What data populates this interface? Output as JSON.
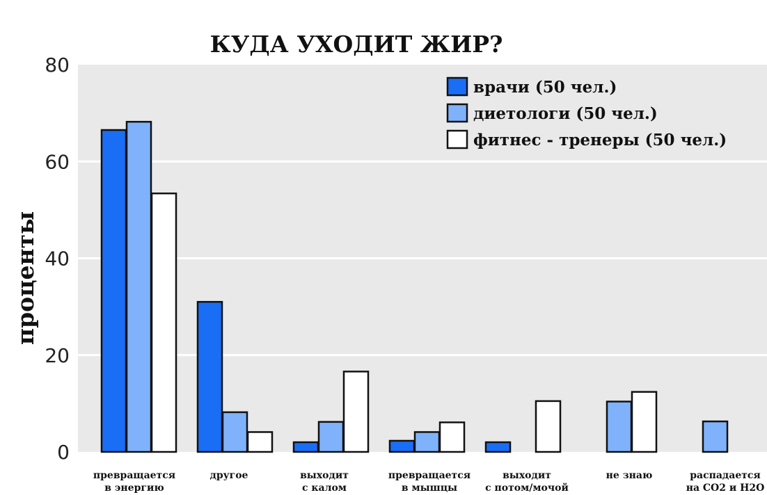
{
  "chart_data": {
    "type": "bar",
    "title": "КУДА УХОДИТ ЖИР?",
    "ylabel": "проценты",
    "xlabel": "",
    "ylim": [
      0,
      80
    ],
    "yticks": [
      0,
      20,
      40,
      60,
      80
    ],
    "grid": true,
    "legend_position": "top-right",
    "categories": [
      [
        "превращается",
        "в энергию"
      ],
      [
        "другое"
      ],
      [
        "выходит",
        "с калом"
      ],
      [
        "превращается",
        "в мышцы"
      ],
      [
        "выходит",
        "с потом/мочой"
      ],
      [
        "не знаю"
      ],
      [
        "распадается",
        "на CO2 и H2O"
      ]
    ],
    "series": [
      {
        "name": "врачи (50 чел.)",
        "color": "#1a6ef5",
        "values": [
          66.5,
          31,
          2,
          2.3,
          2,
          null,
          null
        ]
      },
      {
        "name": "диетологи (50 чел.)",
        "color": "#7fb2fb",
        "values": [
          68.2,
          8.2,
          6.2,
          4.1,
          null,
          10.4,
          6.3
        ]
      },
      {
        "name": "фитнес - тренеры (50 чел.)",
        "color": "#ffffff",
        "values": [
          53.4,
          4.1,
          16.6,
          6.1,
          10.5,
          12.4,
          null
        ]
      }
    ]
  }
}
